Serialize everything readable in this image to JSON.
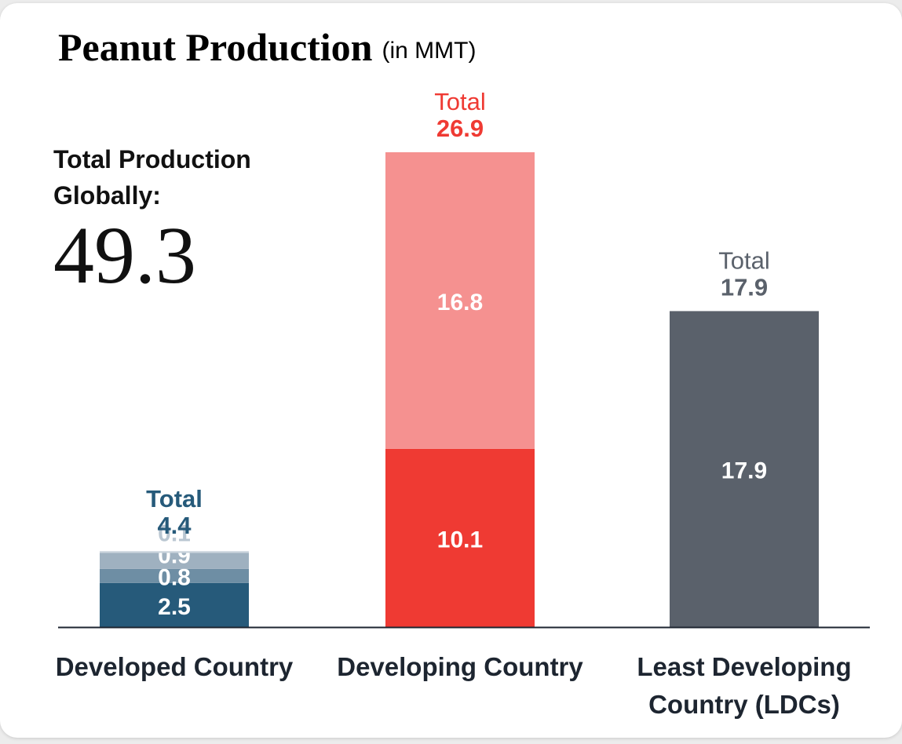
{
  "chart_data": {
    "type": "stacked_bar",
    "title": "Peanut Production",
    "subtitle": "(in MMT)",
    "side_label": "Total Production Globally:",
    "side_value": "49.3",
    "ylim": [
      0,
      26.9
    ],
    "total_label": "Total",
    "bars": [
      {
        "category": "Developed Country",
        "total": 4.4,
        "color": "#265a7a",
        "segments": [
          {
            "value": 2.5,
            "color": "#265a7a",
            "label_color": "#ffffff"
          },
          {
            "value": 0.8,
            "color": "#6e8ea4",
            "label_color": "#ffffff"
          },
          {
            "value": 0.9,
            "color": "#9fb1c0",
            "label_color": "#ffffff"
          },
          {
            "value": 0.1,
            "color": "#c9d3dc",
            "label_color": "#b9c6d1"
          }
        ]
      },
      {
        "category": "Developing Country",
        "total": 26.9,
        "color": "#ef3a33",
        "segments": [
          {
            "value": 10.1,
            "color": "#ef3a33",
            "label_color": "#ffffff"
          },
          {
            "value": 16.8,
            "color": "#f59190",
            "label_color": "#ffffff"
          }
        ]
      },
      {
        "category": "Least Developing Country (LDCs)",
        "total": 17.9,
        "color": "#5a616b",
        "segments": [
          {
            "value": 17.9,
            "color": "#5a616b",
            "label_color": "#ffffff"
          }
        ]
      }
    ]
  }
}
